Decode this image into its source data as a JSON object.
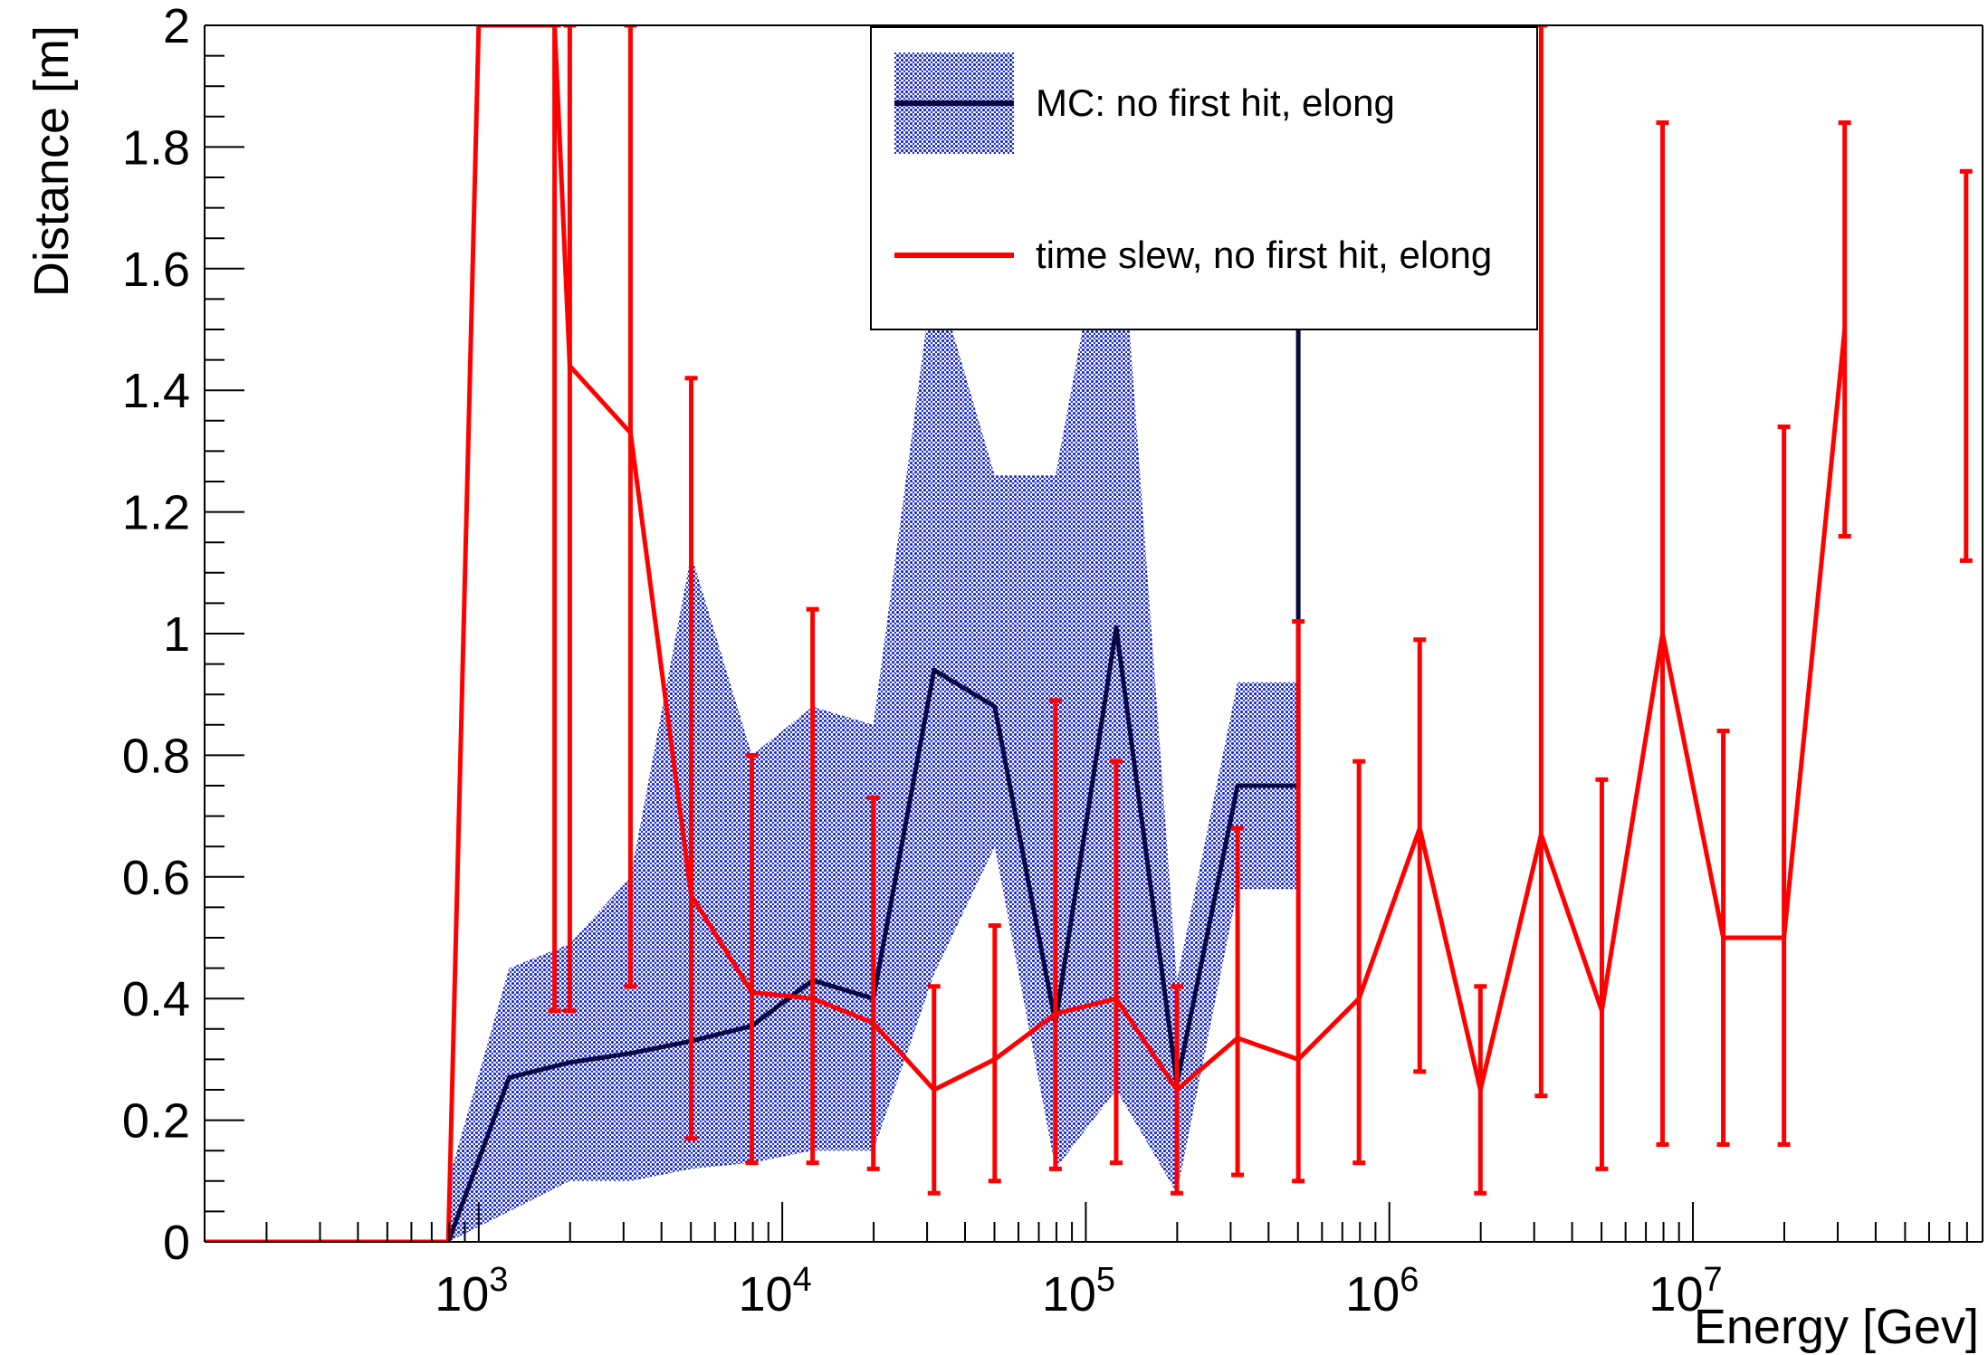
{
  "chart_data": {
    "type": "line",
    "xlabel": "Energy [Gev]",
    "ylabel": "Distance [m]",
    "xscale": "log",
    "xlim": [
      125,
      90000000
    ],
    "ylim": [
      0,
      2
    ],
    "grid": false,
    "legend_position": "top-center",
    "x_tick_labels": [
      "10^3",
      "10^4",
      "10^5",
      "10^6",
      "10^7"
    ],
    "x_tick_values": [
      1000,
      10000,
      100000,
      1000000,
      10000000
    ],
    "y_tick_labels": [
      "0",
      "0.2",
      "0.4",
      "0.6",
      "0.8",
      "1",
      "1.2",
      "1.4",
      "1.6",
      "1.8",
      "2"
    ],
    "y_tick_values": [
      0,
      0.2,
      0.4,
      0.6,
      0.8,
      1.0,
      1.2,
      1.4,
      1.6,
      1.8,
      2.0
    ],
    "series": [
      {
        "name": "MC: no first hit, elong",
        "color": "#0a0a40",
        "band_color": "#1a2ad0",
        "x": [
          125,
          794,
          1259,
          1995,
          3162,
          5012,
          7943,
          12589,
          19953,
          31623,
          50119,
          79433,
          125893,
          199526,
          316228,
          501187,
          501187
        ],
        "y": [
          0,
          0,
          0.27,
          0.295,
          0.31,
          0.33,
          0.355,
          0.43,
          0.4,
          0.94,
          0.88,
          0.36,
          1.01,
          0.26,
          0.75,
          0.75,
          1.65
        ],
        "band_x": [
          794,
          1259,
          1995,
          3162,
          5012,
          7943,
          12589,
          19953,
          31623,
          50119,
          79433,
          125893,
          199526,
          316228,
          501187
        ],
        "band_low": [
          0,
          0.05,
          0.1,
          0.1,
          0.12,
          0.13,
          0.15,
          0.15,
          0.44,
          0.65,
          0.12,
          0.25,
          0.08,
          0.58,
          0.58
        ],
        "band_high": [
          0.1,
          0.45,
          0.49,
          0.6,
          1.13,
          0.8,
          0.88,
          0.85,
          1.6,
          1.26,
          1.26,
          1.8,
          0.43,
          0.92,
          0.92
        ]
      },
      {
        "name": "time slew, no first hit, elong",
        "color": "#ff0000",
        "x": [
          125,
          794,
          1000,
          1778,
          1995,
          3162,
          5012,
          7943,
          12589,
          19953,
          31623,
          50119,
          79433,
          125893,
          199526,
          316228,
          501187,
          794328,
          1258925,
          1995262,
          3162278,
          5011872,
          7943282,
          12589254,
          19952623,
          31622777,
          79432823
        ],
        "y": [
          0,
          0,
          2.0,
          2.0,
          1.44,
          1.33,
          0.57,
          0.41,
          0.4,
          0.36,
          0.25,
          0.3,
          0.375,
          0.4,
          0.25,
          0.335,
          0.3,
          0.4,
          0.68,
          0.25,
          0.67,
          0.38,
          1.0,
          0.5,
          0.5,
          1.5,
          null
        ],
        "err_low": [
          null,
          null,
          null,
          0.38,
          0.38,
          0.42,
          0.17,
          0.13,
          0.13,
          0.12,
          0.08,
          0.1,
          0.12,
          0.13,
          0.08,
          0.11,
          0.1,
          0.13,
          0.28,
          0.08,
          0.24,
          0.12,
          0.16,
          0.16,
          0.16,
          1.16,
          1.12
        ],
        "err_high": [
          null,
          null,
          null,
          2.0,
          2.0,
          2.0,
          1.42,
          0.8,
          1.04,
          0.73,
          0.42,
          0.52,
          0.89,
          0.79,
          0.42,
          0.68,
          1.02,
          0.79,
          0.99,
          0.42,
          2.0,
          0.76,
          1.84,
          0.84,
          1.34,
          1.84,
          1.76
        ]
      }
    ]
  }
}
